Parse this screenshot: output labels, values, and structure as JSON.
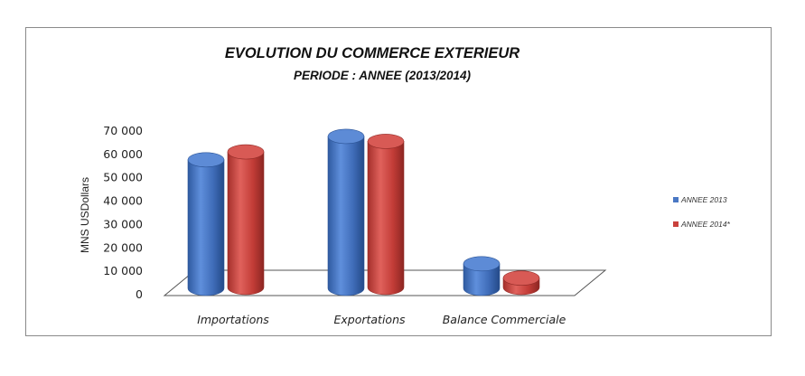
{
  "chart_data": {
    "type": "bar",
    "title": "EVOLUTION DU COMMERCE EXTERIEUR",
    "subtitle": "PERIODE : ANNEE (2013/2014)",
    "ylabel": "MNS USDollars",
    "xlabel": "",
    "categories": [
      "Importations",
      "Exportations",
      "Balance Commerciale"
    ],
    "series": [
      {
        "name": "ANNEE 2013",
        "values": [
          55000,
          65000,
          10500
        ],
        "color": "#4a78c4"
      },
      {
        "name": "ANNEE 2014*",
        "values": [
          58000,
          62500,
          4000
        ],
        "color": "#c9413c"
      }
    ],
    "ylim": [
      0,
      70000
    ],
    "yticks": [
      "0",
      "10 000",
      "20 000",
      "30 000",
      "40 000",
      "50 000",
      "60 000",
      "70 000"
    ],
    "grid": false,
    "legend": "right",
    "style": "3d-cylinder"
  }
}
